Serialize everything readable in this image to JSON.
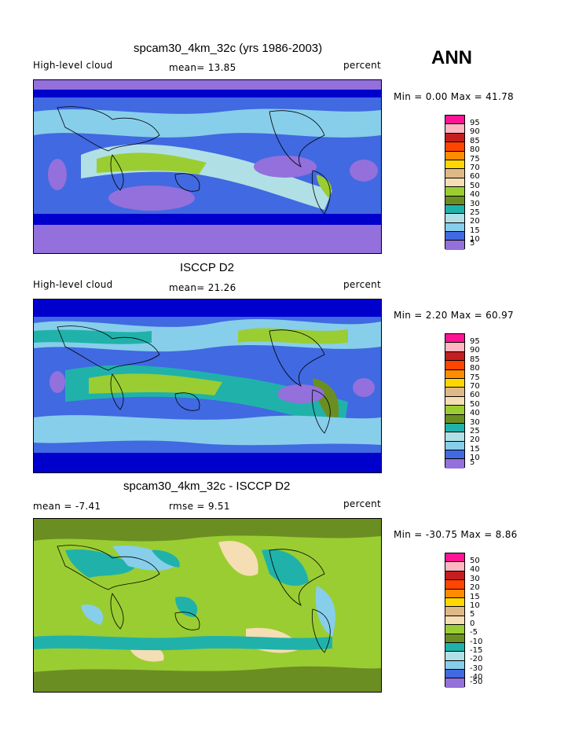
{
  "season": "ANN",
  "units_label": "percent",
  "panels": [
    {
      "title": "spcam30_4km_32c (yrs 1986-2003)",
      "left_label": "High-level cloud",
      "center_label": "mean=  13.85",
      "right_label": "percent",
      "minmax": "Min =   0.00 Max =  41.78",
      "colorbar_labels": [
        "95",
        "90",
        "85",
        "80",
        "75",
        "70",
        "60",
        "50",
        "40",
        "30",
        "25",
        "20",
        "15",
        "10",
        "5"
      ]
    },
    {
      "title": "ISCCP D2",
      "left_label": "High-level cloud",
      "center_label": "mean=  21.26",
      "right_label": "percent",
      "minmax": "Min =   2.20 Max =  60.97",
      "colorbar_labels": [
        "95",
        "90",
        "85",
        "80",
        "75",
        "70",
        "60",
        "50",
        "40",
        "30",
        "25",
        "20",
        "15",
        "10",
        "5"
      ]
    },
    {
      "title": "spcam30_4km_32c - ISCCP D2",
      "left_label": "mean =  -7.41",
      "center_label": "rmse =   9.51",
      "right_label": "percent",
      "minmax": "Min = -30.75 Max =   8.86",
      "colorbar_labels": [
        "50",
        "40",
        "30",
        "20",
        "15",
        "10",
        "5",
        "0",
        "-5",
        "-10",
        "-15",
        "-20",
        "-30",
        "-40",
        "-50"
      ]
    }
  ],
  "colorbar_colors": [
    "#ff1493",
    "#ffb6c1",
    "#c41e1e",
    "#ff4500",
    "#ff8c00",
    "#ffd700",
    "#deb887",
    "#f5deb3",
    "#9acd32",
    "#6b8e23",
    "#20b2aa",
    "#b0e0e6",
    "#87ceeb",
    "#4169e1",
    "#0000cd",
    "#9370db"
  ]
}
